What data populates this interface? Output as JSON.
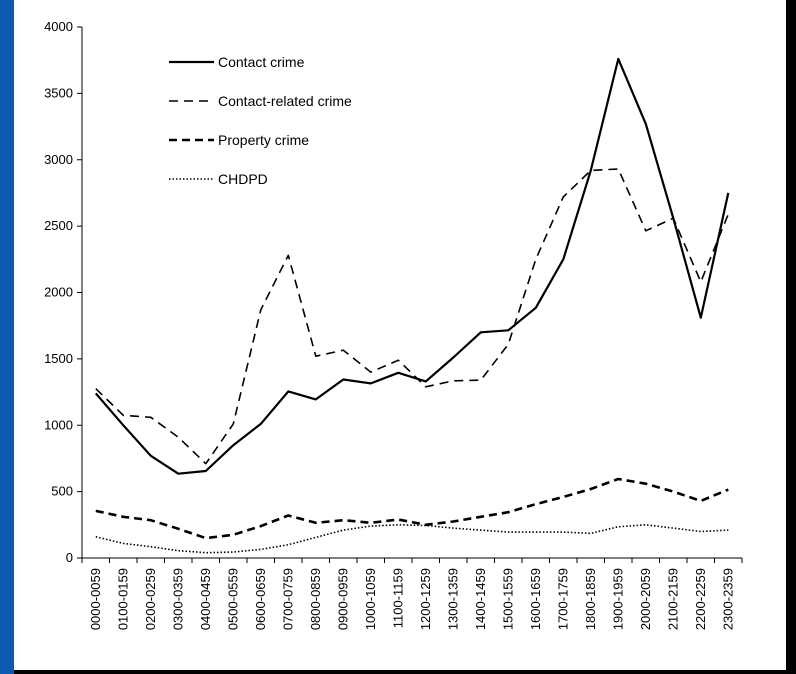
{
  "chart_data": {
    "type": "line",
    "title": "",
    "xlabel": "",
    "ylabel": "",
    "ylim": [
      0,
      4000
    ],
    "yticks": [
      0,
      500,
      1000,
      1500,
      2000,
      2500,
      3000,
      3500,
      4000
    ],
    "grid": false,
    "legend_position": "top-left",
    "categories": [
      "0000-0059",
      "0100-0159",
      "0200-0259",
      "0300-0359",
      "0400-0459",
      "0500-0559",
      "0600-0659",
      "0700-0759",
      "0800-0859",
      "0900-0959",
      "1000-1059",
      "1100-1159",
      "1200-1259",
      "1300-1359",
      "1400-1459",
      "1500-1559",
      "1600-1659",
      "1700-1759",
      "1800-1859",
      "1900-1959",
      "2000-2059",
      "2100-2159",
      "2200-2259",
      "2300-2359"
    ],
    "series": [
      {
        "name": "Contact crime",
        "style": "solid",
        "color": "#000000",
        "values": [
          1240,
          1000,
          770,
          635,
          655,
          850,
          1010,
          1255,
          1195,
          1345,
          1315,
          1395,
          1330,
          1510,
          1700,
          1715,
          1885,
          2250,
          2920,
          3760,
          3270,
          2560,
          1810,
          2750
        ]
      },
      {
        "name": "Contact-related crime",
        "style": "dashed",
        "color": "#000000",
        "values": [
          1275,
          1075,
          1060,
          910,
          710,
          1010,
          1870,
          2280,
          1520,
          1565,
          1400,
          1490,
          1290,
          1335,
          1340,
          1610,
          2250,
          2720,
          2920,
          2930,
          2465,
          2560,
          2080,
          2590
        ]
      },
      {
        "name": "Property crime",
        "style": "heavy-dashed",
        "color": "#000000",
        "values": [
          355,
          310,
          285,
          220,
          150,
          175,
          240,
          320,
          265,
          285,
          265,
          290,
          250,
          275,
          310,
          345,
          405,
          460,
          520,
          595,
          560,
          500,
          430,
          515
        ]
      },
      {
        "name": "CHDPD",
        "style": "dotted",
        "color": "#000000",
        "values": [
          160,
          110,
          85,
          55,
          40,
          45,
          65,
          100,
          155,
          210,
          240,
          250,
          245,
          225,
          210,
          195,
          195,
          195,
          185,
          235,
          250,
          225,
          200,
          210
        ]
      }
    ]
  }
}
